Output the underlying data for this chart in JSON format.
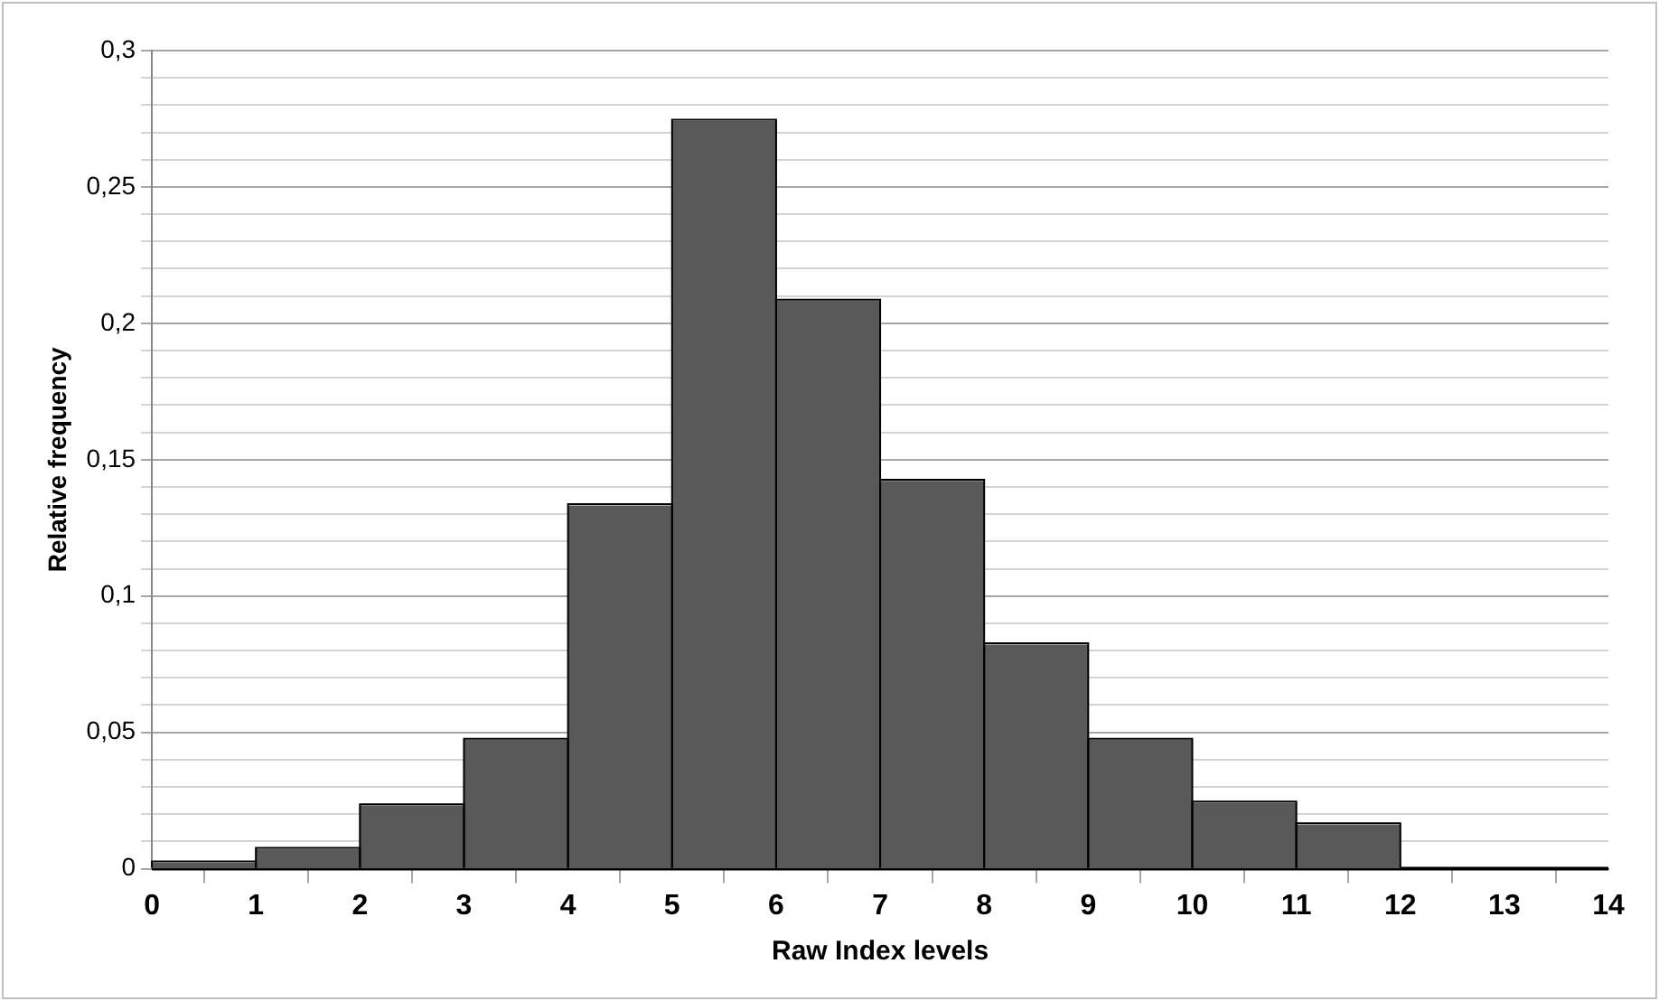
{
  "chart_data": {
    "type": "histogram",
    "xlabel": "Raw Index levels",
    "ylabel": "Relative frequency",
    "bins": [
      0,
      1,
      2,
      3,
      4,
      5,
      6,
      7,
      8,
      9,
      10,
      11,
      12
    ],
    "values": [
      0.002,
      0.007,
      0.023,
      0.047,
      0.133,
      0.274,
      0.208,
      0.142,
      0.082,
      0.047,
      0.024,
      0.016
    ],
    "color": "#595959",
    "xlim": [
      0,
      14
    ],
    "xticks": [
      0,
      1,
      2,
      3,
      4,
      5,
      6,
      7,
      8,
      9,
      10,
      11,
      12,
      13,
      14
    ],
    "ylim": [
      0,
      0.3
    ],
    "yticks": [
      0,
      {
        "value": 0.01,
        "label": null
      },
      {
        "value": 0.02,
        "label": null
      },
      {
        "value": 0.03,
        "label": null
      },
      {
        "value": 0.04,
        "label": null
      },
      {
        "value": 0.05,
        "label": "0,05"
      },
      {
        "value": 0.06,
        "label": null
      },
      {
        "value": 0.07,
        "label": null
      },
      {
        "value": 0.08,
        "label": null
      },
      {
        "value": 0.09,
        "label": null
      },
      {
        "value": 0.1,
        "label": "0,1"
      },
      {
        "value": 0.11,
        "label": null
      },
      {
        "value": 0.12,
        "label": null
      },
      {
        "value": 0.13,
        "label": null
      },
      {
        "value": 0.14,
        "label": null
      },
      {
        "value": 0.15,
        "label": "0,15"
      },
      {
        "value": 0.16,
        "label": null
      },
      {
        "value": 0.17,
        "label": null
      },
      {
        "value": 0.18,
        "label": null
      },
      {
        "value": 0.19,
        "label": null
      },
      {
        "value": 0.2,
        "label": "0,2"
      },
      {
        "value": 0.21,
        "label": null
      },
      {
        "value": 0.22,
        "label": null
      },
      {
        "value": 0.23,
        "label": null
      },
      {
        "value": 0.24,
        "label": null
      },
      {
        "value": 0.25,
        "label": "0,25"
      },
      {
        "value": 0.26,
        "label": null
      },
      {
        "value": 0.27,
        "label": null
      },
      {
        "value": 0.28,
        "label": null
      },
      {
        "value": 0.29,
        "label": null
      },
      {
        "value": 0.3,
        "label": "0,3"
      }
    ],
    "grid": "y",
    "legend": false
  }
}
